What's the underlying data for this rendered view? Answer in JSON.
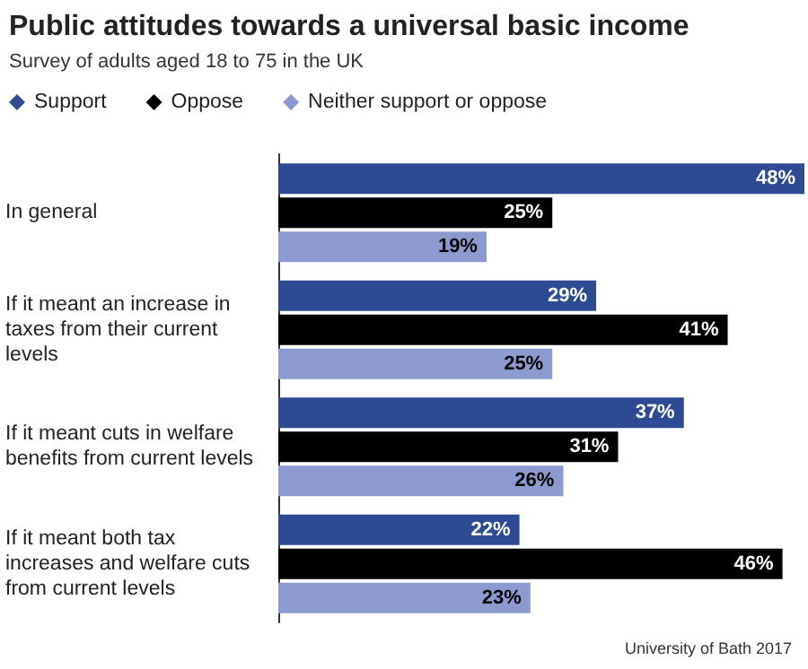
{
  "chart_data": {
    "type": "bar",
    "orientation": "horizontal",
    "title": "Public attitudes towards a universal basic income",
    "subtitle": "Survey of adults aged 18 to 75 in the UK",
    "categories": [
      "In general",
      "If it meant an increase in taxes from their current levels",
      "If it meant cuts in welfare benefits from current levels",
      "If it meant both tax increases and welfare cuts from current levels"
    ],
    "series": [
      {
        "name": "Support",
        "color": "#2d4a92",
        "values": [
          48,
          29,
          37,
          22
        ],
        "value_labels": [
          "48%",
          "29%",
          "37%",
          "22%"
        ]
      },
      {
        "name": "Oppose",
        "color": "#000000",
        "values": [
          25,
          41,
          31,
          46
        ],
        "value_labels": [
          "25%",
          "41%",
          "31%",
          "46%"
        ]
      },
      {
        "name": "Neither support or oppose",
        "color": "#8d9ad0",
        "values": [
          19,
          25,
          26,
          23
        ],
        "value_labels": [
          "19%",
          "25%",
          "26%",
          "23%"
        ]
      }
    ],
    "legend": "top left",
    "marker": "diamond",
    "annotations": [
      "University of Bath 2017"
    ]
  }
}
